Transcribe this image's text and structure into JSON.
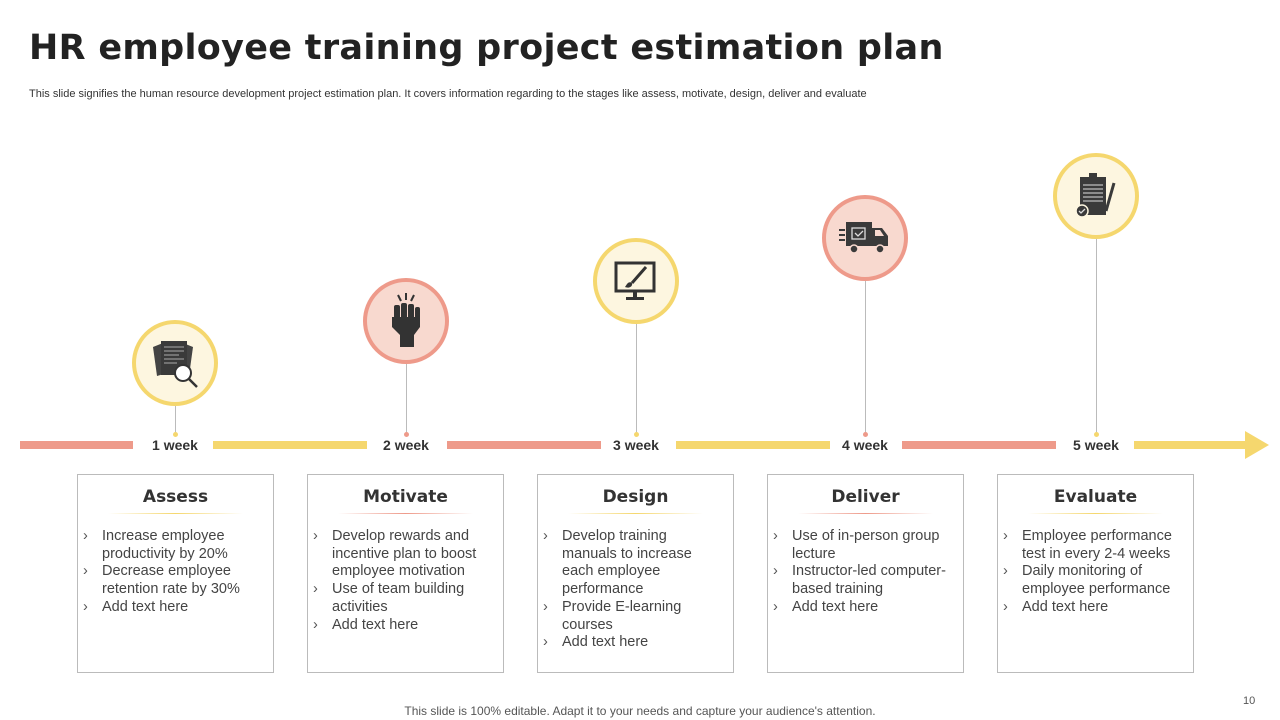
{
  "title": "HR employee training project estimation plan",
  "subtitle": "This slide signifies the human resource development project estimation plan. It covers information regarding to the stages like assess, motivate, design, deliver and evaluate",
  "colors": {
    "salmon": "#EE9A8A",
    "yellow": "#F5D76E"
  },
  "stages": [
    {
      "week": "1 week",
      "title": "Assess",
      "icon": "document-search-icon",
      "theme": "yellow",
      "bullets": [
        "Increase employee productivity by 20%",
        "Decrease employee retention rate by 30%",
        "Add text here"
      ]
    },
    {
      "week": "2 week",
      "title": "Motivate",
      "icon": "raised-fist-icon",
      "theme": "salmon",
      "bullets": [
        "Develop rewards and incentive plan to boost employee motivation",
        "Use of team building activities",
        "Add text here"
      ]
    },
    {
      "week": "3 week",
      "title": "Design",
      "icon": "monitor-brush-icon",
      "theme": "yellow",
      "bullets": [
        "Develop training manuals to increase each employee performance",
        "Provide E-learning courses",
        "Add text here"
      ]
    },
    {
      "week": "4 week",
      "title": "Deliver",
      "icon": "delivery-truck-icon",
      "theme": "salmon",
      "bullets": [
        "Use of in-person group lecture",
        "Instructor-led computer-based training",
        "Add text here"
      ]
    },
    {
      "week": "5 week",
      "title": "Evaluate",
      "icon": "clipboard-pen-icon",
      "theme": "yellow",
      "bullets": [
        "Employee performance test in every 2-4 weeks",
        "Daily monitoring of employee performance",
        "Add text here"
      ]
    }
  ],
  "footer": "This slide is 100% editable. Adapt it to your needs and capture your audience's attention.",
  "page_number": "10"
}
